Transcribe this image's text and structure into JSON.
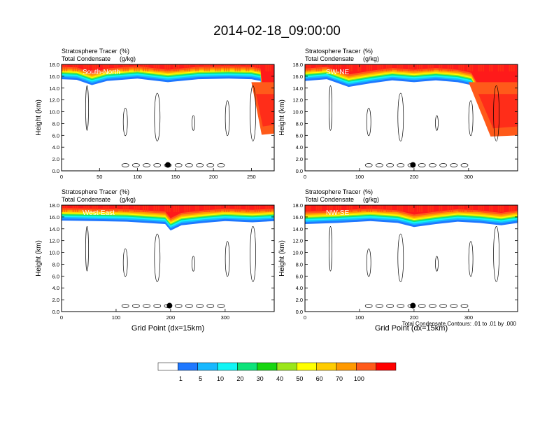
{
  "title": "2014-02-18_09:00:00",
  "palette": [
    "#ffffff",
    "#1f78ff",
    "#17b8ff",
    "#11f5f5",
    "#0ce37a",
    "#17d611",
    "#9be61a",
    "#ffff00",
    "#ffcc00",
    "#ff9900",
    "#ff5a1a",
    "#ff1a1a",
    "#ff0000"
  ],
  "colorbar": {
    "levels": [
      "1",
      "5",
      "10",
      "20",
      "30",
      "40",
      "50",
      "60",
      "70",
      "100"
    ],
    "colors": [
      "#ffffff",
      "#1f78ff",
      "#17b8ff",
      "#11f5f5",
      "#0ce37a",
      "#17d611",
      "#9be61a",
      "#ffff00",
      "#ffcc00",
      "#ff9900",
      "#ff5a1a",
      "#ff0000"
    ]
  },
  "footnote": "Total Condensate Contours: .01 to .01 by .000",
  "chart_data": [
    {
      "type": "heatmap",
      "panel_label": "South-North",
      "subtitle_line1": "Stratosphere Tracer",
      "subtitle_line1_unit": "(%)",
      "subtitle_line2": "Total Condensate",
      "subtitle_line2_unit": "(g/kg)",
      "xlabel": "",
      "ylabel": "Height (km)",
      "xlim": [
        0,
        280
      ],
      "ylim": [
        0,
        18
      ],
      "xticks": [
        "0",
        "50",
        "100",
        "150",
        "200",
        "250"
      ],
      "yticks": [
        "0.0",
        "2.0",
        "4.0",
        "6.0",
        "8.0",
        "10.0",
        "12.0",
        "14.0",
        "16.0",
        "18.0"
      ],
      "dot_x": 140,
      "tropopause_base_km": [
        [
          0,
          15.5
        ],
        [
          20,
          15.4
        ],
        [
          40,
          14.5
        ],
        [
          60,
          15.2
        ],
        [
          100,
          15.6
        ],
        [
          140,
          15.0
        ],
        [
          180,
          15.5
        ],
        [
          220,
          15.6
        ],
        [
          250,
          15.5
        ],
        [
          262,
          15.2
        ],
        [
          265,
          10.8
        ],
        [
          270,
          9.5
        ],
        [
          280,
          10.0
        ]
      ],
      "intrusion": {
        "x_start": 250,
        "x_end": 280,
        "bottom_km": 6.3
      }
    },
    {
      "type": "heatmap",
      "panel_label": "SW-NE",
      "subtitle_line1": "Stratosphere Tracer",
      "subtitle_line1_unit": "(%)",
      "subtitle_line2": "Total Condensate",
      "subtitle_line2_unit": "(g/kg)",
      "xlabel": "",
      "ylabel": "Height (km)",
      "xlim": [
        0,
        390
      ],
      "ylim": [
        0,
        18
      ],
      "xticks": [
        "0",
        "100",
        "200",
        "300"
      ],
      "yticks": [
        "0.0",
        "2.0",
        "4.0",
        "6.0",
        "8.0",
        "10.0",
        "12.0",
        "14.0",
        "16.0",
        "18.0"
      ],
      "dot_x": 198,
      "tropopause_base_km": [
        [
          0,
          15.2
        ],
        [
          40,
          15.5
        ],
        [
          80,
          14.2
        ],
        [
          120,
          14.8
        ],
        [
          160,
          15.3
        ],
        [
          200,
          15.0
        ],
        [
          240,
          15.3
        ],
        [
          280,
          15.0
        ],
        [
          305,
          14.5
        ],
        [
          320,
          12.0
        ],
        [
          335,
          7.0
        ],
        [
          360,
          6.5
        ],
        [
          390,
          8.0
        ]
      ],
      "intrusion": {
        "x_start": 300,
        "x_end": 390,
        "bottom_km": 6.0
      }
    },
    {
      "type": "heatmap",
      "panel_label": "West-East",
      "subtitle_line1": "Stratosphere Tracer",
      "subtitle_line1_unit": "(%)",
      "subtitle_line2": "Total Condensate",
      "subtitle_line2_unit": "(g/kg)",
      "xlabel": "Grid Point (dx=15km)",
      "ylabel": "Height (km)",
      "xlim": [
        0,
        390
      ],
      "ylim": [
        0,
        18
      ],
      "xticks": [
        "0",
        "100",
        "200",
        "300"
      ],
      "yticks": [
        "0.0",
        "2.0",
        "4.0",
        "6.0",
        "8.0",
        "10.0",
        "12.0",
        "14.0",
        "16.0",
        "18.0"
      ],
      "dot_x": 198,
      "tropopause_base_km": [
        [
          0,
          15.4
        ],
        [
          60,
          15.3
        ],
        [
          120,
          15.2
        ],
        [
          190,
          14.8
        ],
        [
          200,
          13.7
        ],
        [
          220,
          14.6
        ],
        [
          260,
          15.0
        ],
        [
          300,
          15.3
        ],
        [
          350,
          15.1
        ],
        [
          390,
          15.3
        ]
      ],
      "intrusion": null
    },
    {
      "type": "heatmap",
      "panel_label": "NW-SE",
      "subtitle_line1": "Stratosphere Tracer",
      "subtitle_line1_unit": "(%)",
      "subtitle_line2": "Total Condensate",
      "subtitle_line2_unit": "(g/kg)",
      "xlabel": "Grid Point (dx=15km)",
      "ylabel": "Height (km)",
      "xlim": [
        0,
        390
      ],
      "ylim": [
        0,
        18
      ],
      "xticks": [
        "0",
        "100",
        "200",
        "300"
      ],
      "yticks": [
        "0.0",
        "2.0",
        "4.0",
        "6.0",
        "8.0",
        "10.0",
        "12.0",
        "14.0",
        "16.0",
        "18.0"
      ],
      "dot_x": 198,
      "tropopause_base_km": [
        [
          0,
          14.8
        ],
        [
          60,
          15.0
        ],
        [
          120,
          15.3
        ],
        [
          170,
          15.0
        ],
        [
          200,
          14.3
        ],
        [
          240,
          14.8
        ],
        [
          280,
          15.2
        ],
        [
          320,
          15.0
        ],
        [
          360,
          14.6
        ],
        [
          390,
          15.0
        ]
      ],
      "intrusion": null
    }
  ]
}
